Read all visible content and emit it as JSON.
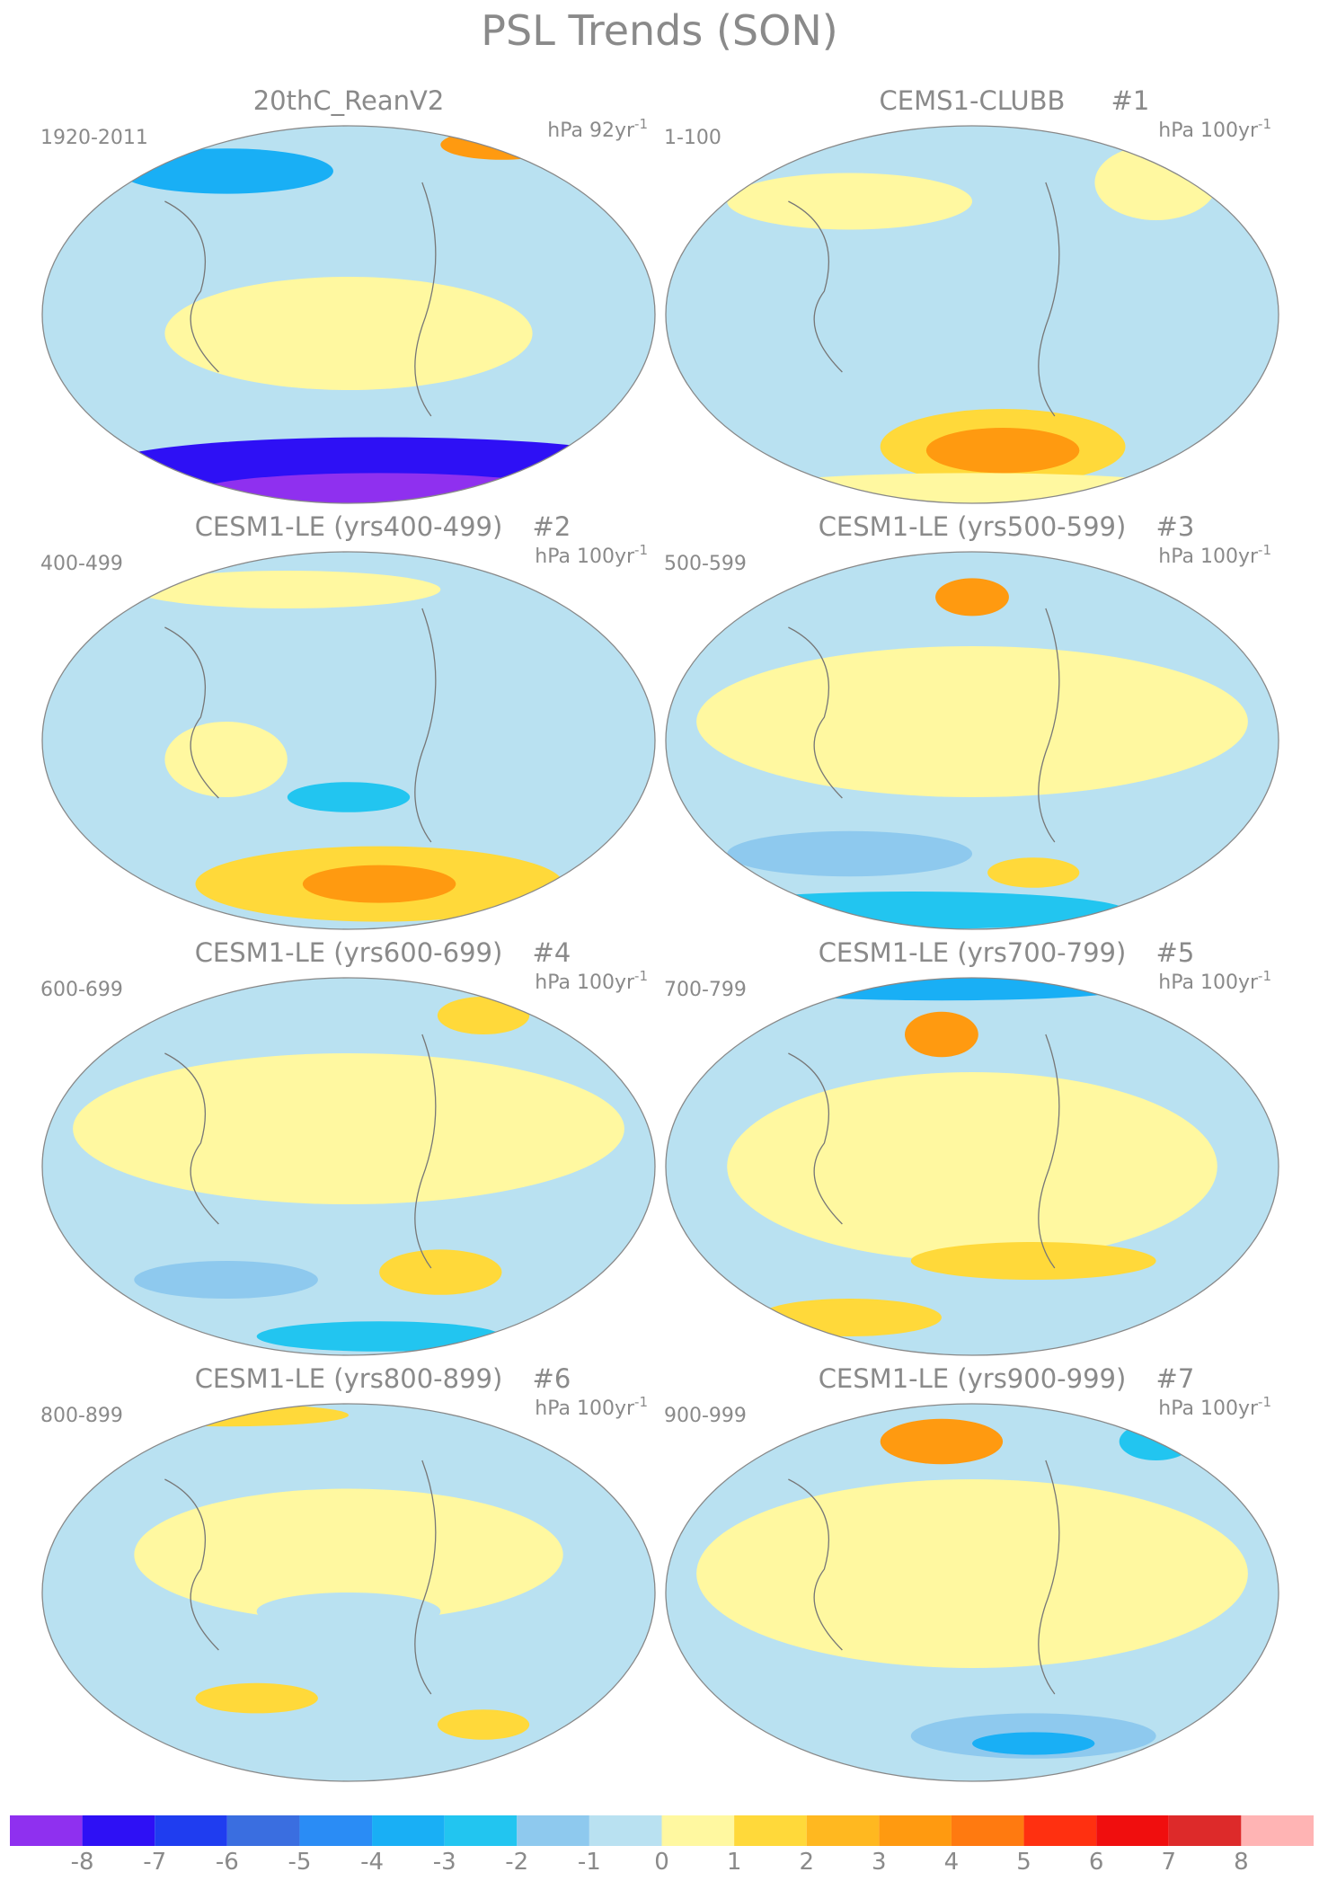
{
  "title": "PSL Trends (SON)",
  "panels": [
    {
      "title": "20thC_ReanV2",
      "period": "1920-2011",
      "units": "hPa 92yr",
      "units_exp": "-1"
    },
    {
      "title": "CEMS1-CLUBB",
      "number": "#1",
      "period": "1-100",
      "units": "hPa 100yr",
      "units_exp": "-1"
    },
    {
      "title": "CESM1-LE (yrs400-499)",
      "number": "#2",
      "period": "400-499",
      "units": "hPa 100yr",
      "units_exp": "-1"
    },
    {
      "title": "CESM1-LE (yrs500-599)",
      "number": "#3",
      "period": "500-599",
      "units": "hPa 100yr",
      "units_exp": "-1"
    },
    {
      "title": "CESM1-LE (yrs600-699)",
      "number": "#4",
      "period": "600-699",
      "units": "hPa 100yr",
      "units_exp": "-1"
    },
    {
      "title": "CESM1-LE (yrs700-799)",
      "number": "#5",
      "period": "700-799",
      "units": "hPa 100yr",
      "units_exp": "-1"
    },
    {
      "title": "CESM1-LE (yrs800-899)",
      "number": "#6",
      "period": "800-899",
      "units": "hPa 100yr",
      "units_exp": "-1"
    },
    {
      "title": "CESM1-LE (yrs900-999)",
      "number": "#7",
      "period": "900-999",
      "units": "hPa 100yr",
      "units_exp": "-1"
    }
  ],
  "colorbar": {
    "levels": [
      -8,
      -7,
      -6,
      -5,
      -4,
      -3,
      -2,
      -1,
      0,
      1,
      2,
      3,
      4,
      5,
      6,
      7,
      8
    ],
    "colors": [
      "#8f30ef",
      "#2e10f5",
      "#1f3df0",
      "#3a6ee0",
      "#2a8cf5",
      "#19aff5",
      "#22c5f0",
      "#8ec9ee",
      "#b9e1f1",
      "#fff8a0",
      "#ffd93a",
      "#ffb820",
      "#ff9a10",
      "#ff7a10",
      "#ff3010",
      "#f00e0e",
      "#dd2a2a",
      "#ffb4b4"
    ]
  }
}
